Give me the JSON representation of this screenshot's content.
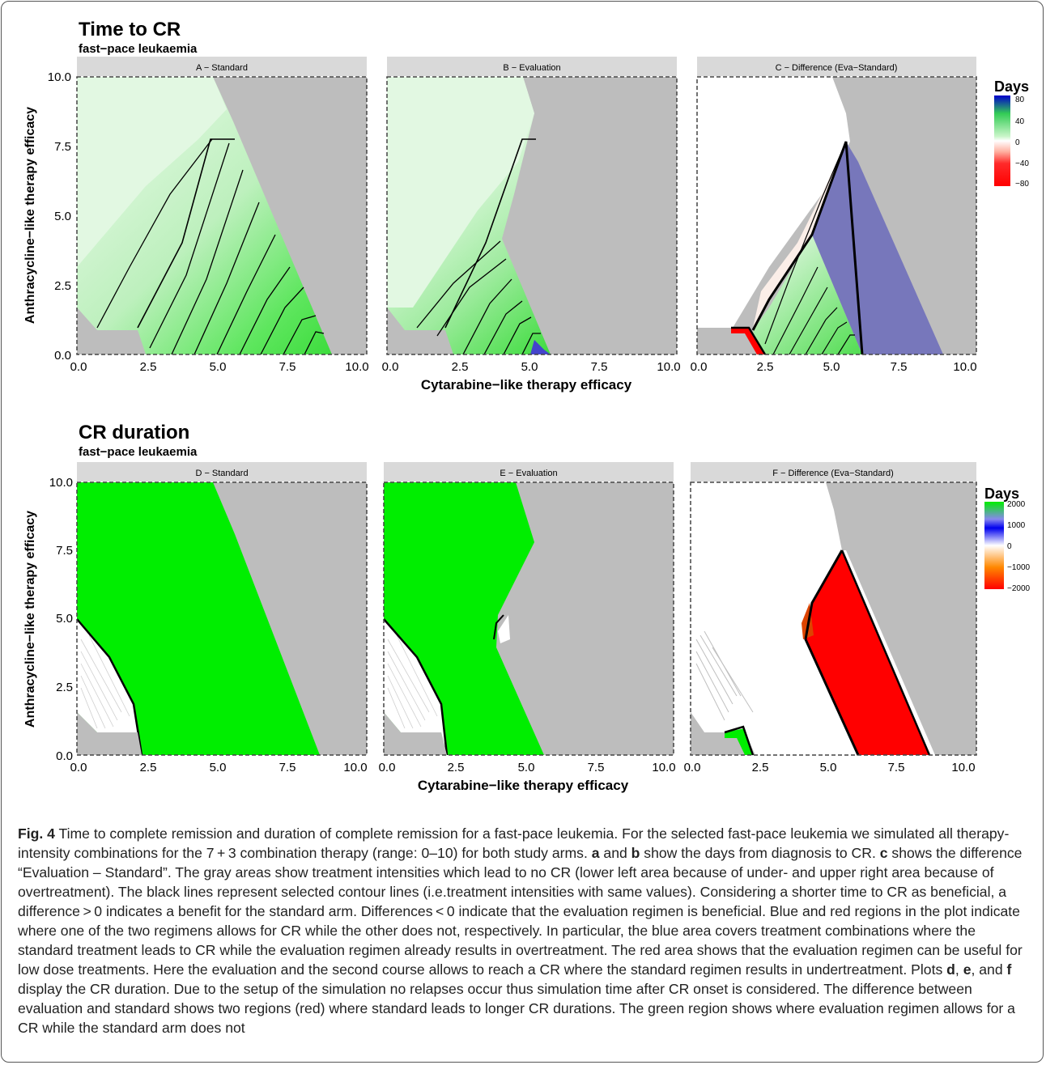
{
  "sections": [
    {
      "title": "Time to CR",
      "subtitle": "fast−pace leukaemia",
      "ylabel": "Anthracycline−like therapy efficacy",
      "xlabel": "Cytarabine−like therapy efficacy",
      "panels": [
        "A − Standard",
        "B − Evaluation",
        "C − Difference (Eva−Standard)"
      ],
      "legend": {
        "title": "Days",
        "ticks": [
          "80",
          "40",
          "0",
          "−40",
          "−80"
        ],
        "colors": [
          "#0000cc",
          "#34e834",
          "#ffffff",
          "#ff9c8a",
          "#ff0000"
        ]
      }
    },
    {
      "title": "CR duration",
      "subtitle": "fast−pace leukaemia",
      "ylabel": "Anthracycline−like therapy efficacy",
      "xlabel": "Cytarabine−like therapy efficacy",
      "panels": [
        "D − Standard",
        "E − Evaluation",
        "F − Difference (Eva−Standard)"
      ],
      "legend": {
        "title": "Days",
        "ticks": [
          "2000",
          "1000",
          "0",
          "−1000",
          "−2000"
        ],
        "colors": [
          "#00ee00",
          "#0000ee",
          "#ffffff",
          "#ff8800",
          "#ff0000"
        ]
      }
    }
  ],
  "axis_ticks": [
    "0.0",
    "2.5",
    "5.0",
    "7.5",
    "10.0"
  ],
  "colors": {
    "gray_region": "#bdbdbd",
    "strip": "#d9d9d9",
    "light_green": "#e0f8e0",
    "green": "#00ee00",
    "blue": "#7777bb",
    "red": "#ff0000"
  },
  "chart_data": [
    {
      "type": "heatmap",
      "title": "Time to CR",
      "subtitle": "fast−pace leukaemia",
      "facets": [
        "A − Standard",
        "B − Evaluation",
        "C − Difference (Eva−Standard)"
      ],
      "xlabel": "Cytarabine−like therapy efficacy",
      "ylabel": "Anthracycline−like therapy efficacy",
      "xlim": [
        0,
        10
      ],
      "ylim": [
        0,
        10
      ],
      "x_ticks": [
        0,
        2.5,
        5,
        7.5,
        10
      ],
      "y_ticks": [
        0,
        2.5,
        5,
        7.5,
        10
      ],
      "legend_title": "Days",
      "legend_ticks": [
        80,
        40,
        0,
        -40,
        -80
      ]
    },
    {
      "type": "heatmap",
      "title": "CR duration",
      "subtitle": "fast−pace leukaemia",
      "facets": [
        "D − Standard",
        "E − Evaluation",
        "F − Difference (Eva−Standard)"
      ],
      "xlabel": "Cytarabine−like therapy efficacy",
      "ylabel": "Anthracycline−like therapy efficacy",
      "xlim": [
        0,
        10
      ],
      "ylim": [
        0,
        10
      ],
      "x_ticks": [
        0,
        2.5,
        5,
        7.5,
        10
      ],
      "y_ticks": [
        0,
        2.5,
        5,
        7.5,
        10
      ],
      "legend_title": "Days",
      "legend_ticks": [
        2000,
        1000,
        0,
        -1000,
        -2000
      ]
    }
  ],
  "caption": {
    "label": "Fig. 4",
    "text_parts": [
      " Time to complete remission and duration of complete remission for a fast-pace leukemia. For the selected fast-pace leukemia we simulated all therapy-intensity combinations for the 7 + 3 combination therapy (range: 0–10) for both study arms. ",
      "a",
      " and ",
      "b",
      " show the days from diagnosis to CR. ",
      "c",
      " shows the difference “Evaluation – Standard”. The gray areas show treatment intensities which lead to no CR (lower left area because of under- and upper right area because of overtreatment). The black lines represent selected contour lines (i.e.treatment intensities with same values). Considering a shorter time to CR as beneficial, a difference > 0 indicates a benefit for the standard arm. Differences < 0 indicate that the evaluation regimen is beneficial. Blue and red regions in the plot indicate where one of the two regimens allows for CR while the other does not, respectively. In particular, the blue area covers treatment combinations where the standard treatment leads to CR while the evaluation regimen already results in overtreatment. The red area shows that the evaluation regimen can be useful for low dose treatments. Here the evaluation and the second course allows to reach a CR where the standard regimen results in undertreatment. Plots ",
      "d",
      ", ",
      "e",
      ", and ",
      "f",
      " display the CR duration. Due to the setup of the simulation no relapses occur thus simulation time after CR onset is considered. The difference between evaluation and standard shows two regions (red) where standard leads to longer CR durations. The green region shows where evaluation regimen allows for a CR while the standard arm does not"
    ]
  }
}
